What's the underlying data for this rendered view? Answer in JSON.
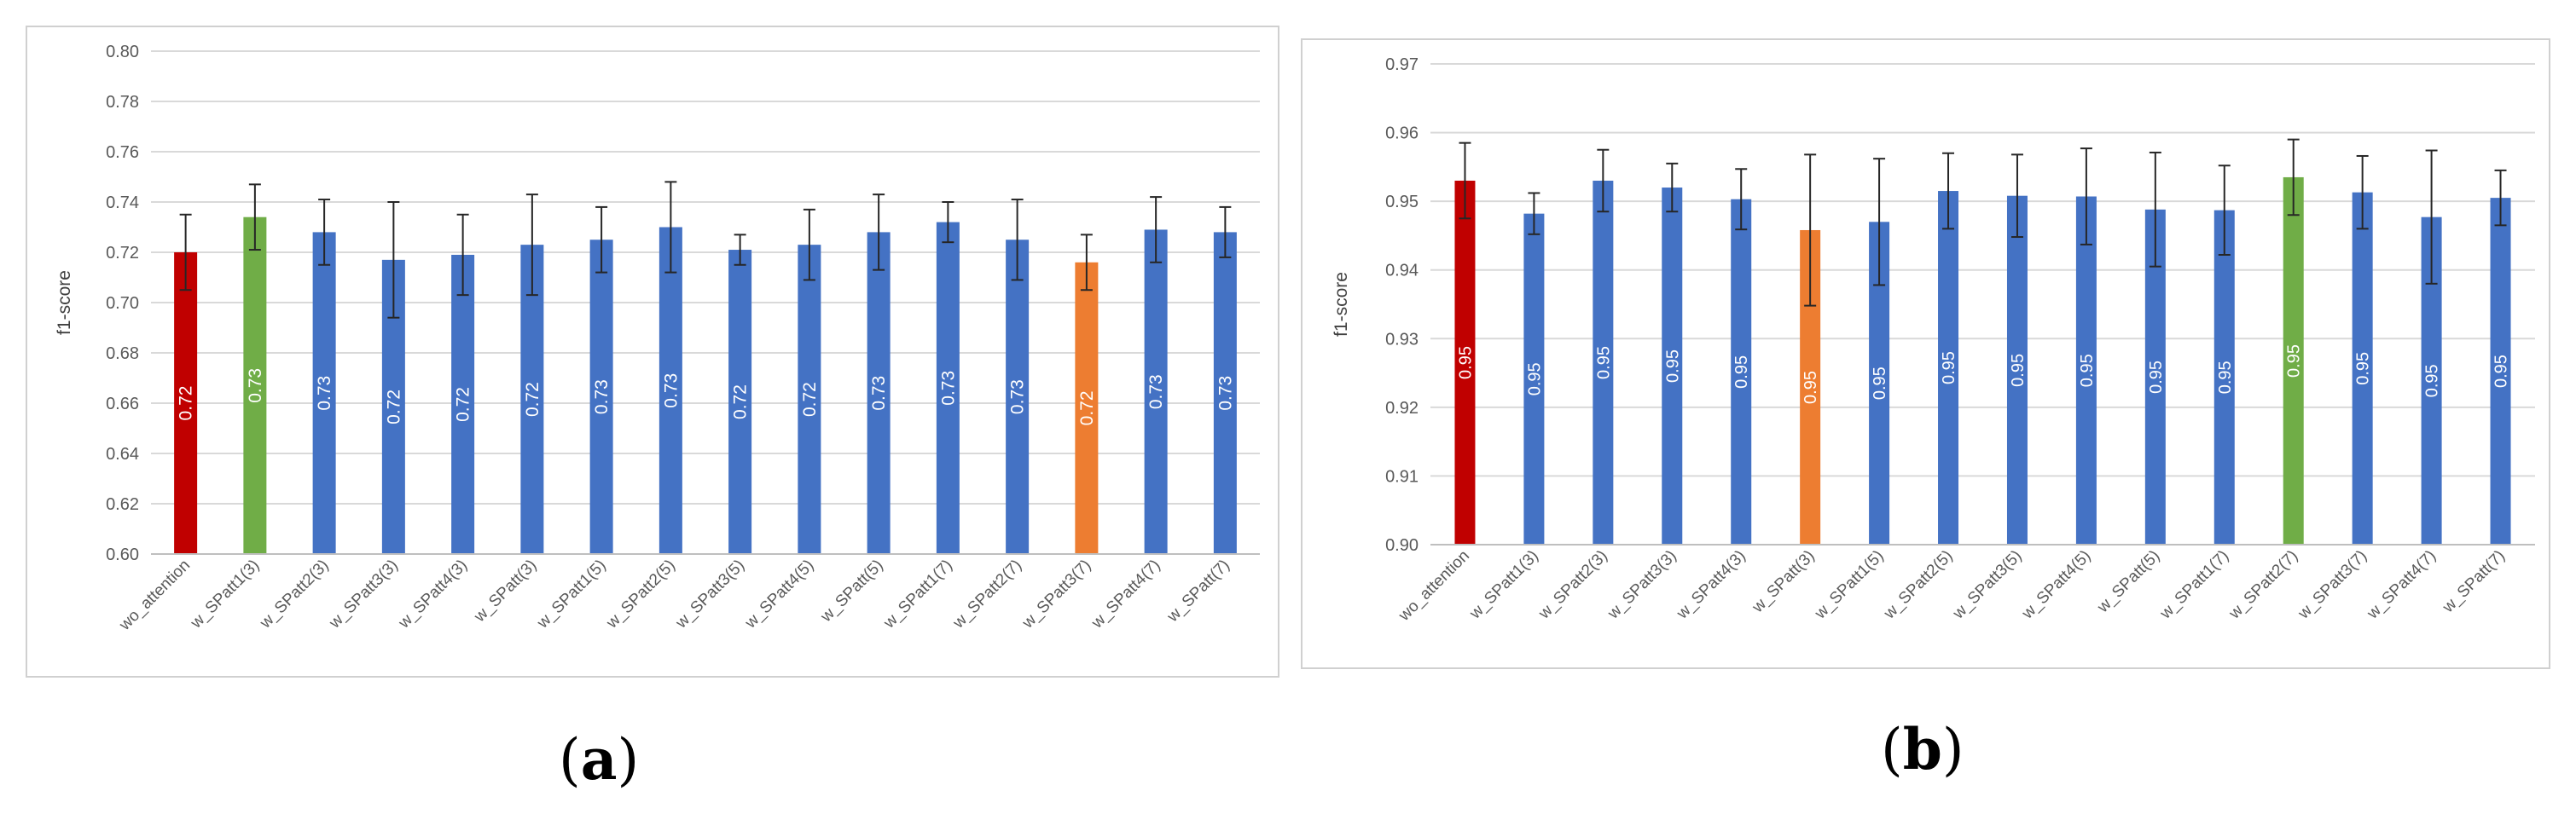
{
  "captions": {
    "a_open": "(",
    "a_letter": "a",
    "a_close": ")",
    "b_open": "(",
    "b_letter": "b",
    "b_close": ")"
  },
  "chart_data": [
    {
      "id": "a",
      "type": "bar",
      "title": "",
      "xlabel": "",
      "ylabel": "f1-score",
      "ylim": [
        0.6,
        0.8
      ],
      "yticks": [
        "0.60",
        "0.62",
        "0.64",
        "0.66",
        "0.68",
        "0.70",
        "0.72",
        "0.74",
        "0.76",
        "0.78",
        "0.80"
      ],
      "grid": true,
      "categories": [
        "wo_attention",
        "w_SPatt1(3)",
        "w_SPatt2(3)",
        "w_SPatt3(3)",
        "w_SPatt4(3)",
        "w_SPatt(3)",
        "w_SPatt1(5)",
        "w_SPatt2(5)",
        "w_SPatt3(5)",
        "w_SPatt4(5)",
        "w_SPatt(5)",
        "w_SPatt1(7)",
        "w_SPatt2(7)",
        "w_SPatt3(7)",
        "w_SPatt4(7)",
        "w_SPatt(7)"
      ],
      "values": [
        0.72,
        0.734,
        0.728,
        0.717,
        0.719,
        0.723,
        0.725,
        0.73,
        0.721,
        0.723,
        0.728,
        0.732,
        0.725,
        0.716,
        0.729,
        0.728
      ],
      "errors": [
        0.015,
        0.013,
        0.013,
        0.023,
        0.016,
        0.02,
        0.013,
        0.018,
        0.006,
        0.014,
        0.015,
        0.008,
        0.016,
        0.011,
        0.013,
        0.01
      ],
      "data_labels": [
        "0.72",
        "0.73",
        "0.73",
        "0.72",
        "0.72",
        "0.72",
        "0.73",
        "0.73",
        "0.72",
        "0.72",
        "0.73",
        "0.73",
        "0.73",
        "0.72",
        "0.73",
        "0.73"
      ],
      "colors": [
        "#c00000",
        "#70ad47",
        "#4472c4",
        "#4472c4",
        "#4472c4",
        "#4472c4",
        "#4472c4",
        "#4472c4",
        "#4472c4",
        "#4472c4",
        "#4472c4",
        "#4472c4",
        "#4472c4",
        "#ed7d31",
        "#4472c4",
        "#4472c4"
      ]
    },
    {
      "id": "b",
      "type": "bar",
      "title": "",
      "xlabel": "",
      "ylabel": "f1-score",
      "ylim": [
        0.9,
        0.97
      ],
      "yticks": [
        "0.90",
        "0.91",
        "0.92",
        "0.93",
        "0.94",
        "0.95",
        "0.96",
        "0.97"
      ],
      "grid": true,
      "categories": [
        "wo_attention",
        "w_SPatt1(3)",
        "w_SPatt2(3)",
        "w_SPatt3(3)",
        "w_SPatt4(3)",
        "w_SPatt(3)",
        "w_SPatt1(5)",
        "w_SPatt2(5)",
        "w_SPatt3(5)",
        "w_SPatt4(5)",
        "w_SPatt(5)",
        "w_SPatt1(7)",
        "w_SPatt2(7)",
        "w_SPatt3(7)",
        "w_SPatt4(7)",
        "w_SPatt(7)"
      ],
      "values": [
        0.953,
        0.9482,
        0.953,
        0.952,
        0.9503,
        0.9458,
        0.947,
        0.9515,
        0.9508,
        0.9507,
        0.9488,
        0.9487,
        0.9535,
        0.9513,
        0.9477,
        0.9505
      ],
      "errors": [
        0.0055,
        0.003,
        0.0045,
        0.0035,
        0.0044,
        0.011,
        0.0092,
        0.0055,
        0.006,
        0.007,
        0.0083,
        0.0065,
        0.0055,
        0.0053,
        0.0097,
        0.004
      ],
      "data_labels": [
        "0.95",
        "0.95",
        "0.95",
        "0.95",
        "0.95",
        "0.95",
        "0.95",
        "0.95",
        "0.95",
        "0.95",
        "0.95",
        "0.95",
        "0.95",
        "0.95",
        "0.95",
        "0.95"
      ],
      "colors": [
        "#c00000",
        "#4472c4",
        "#4472c4",
        "#4472c4",
        "#4472c4",
        "#ed7d31",
        "#4472c4",
        "#4472c4",
        "#4472c4",
        "#4472c4",
        "#4472c4",
        "#4472c4",
        "#70ad47",
        "#4472c4",
        "#4472c4",
        "#4472c4"
      ]
    }
  ]
}
